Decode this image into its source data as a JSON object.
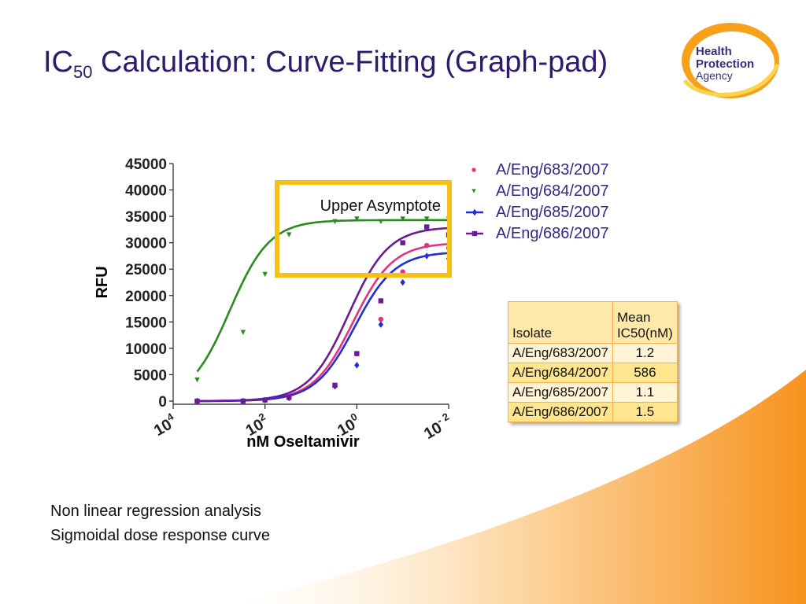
{
  "title": {
    "main": "IC",
    "sub": "50",
    "rest": " Calculation: Curve-Fitting (Graph-pad)"
  },
  "logo": {
    "line1": "Health",
    "line2": "Protection",
    "line3": "Agency"
  },
  "colors": {
    "title": "#2e1a6e",
    "orange_accent": "#f7931e",
    "callout_border": "#f6c117"
  },
  "callout": {
    "label": "Upper Asymptote"
  },
  "chart_data": {
    "type": "scatter",
    "title": "",
    "xlabel": "nM Oseltamivir",
    "ylabel": "RFU",
    "x_scale": "log",
    "x_reversed": true,
    "xlim": [
      10000,
      0.01
    ],
    "ylim": [
      0,
      45000
    ],
    "yticks": [
      0,
      5000,
      10000,
      15000,
      20000,
      25000,
      30000,
      35000,
      40000,
      45000
    ],
    "xticks": [
      {
        "value": 10000,
        "base": "10",
        "exp": "4"
      },
      {
        "value": 100,
        "base": "10",
        "exp": "2"
      },
      {
        "value": 1,
        "base": "10",
        "exp": "0"
      },
      {
        "value": 0.01,
        "base": "10",
        "exp": "- 2"
      }
    ],
    "grid": false,
    "legend_position": "top-right",
    "series": [
      {
        "name": "A/Eng/683/2007",
        "color": "#e8307c",
        "marker": "circle",
        "x": [
          3000,
          300,
          100,
          30,
          3,
          1,
          0.3,
          0.1,
          0.03,
          0.01
        ],
        "y": [
          0,
          0,
          200,
          600,
          3000,
          9000,
          15500,
          24500,
          29500,
          29000
        ],
        "fit": {
          "bottom": 0,
          "top": 30000,
          "ic50": 1.2,
          "hill": 1.0
        }
      },
      {
        "name": "A/Eng/684/2007",
        "color": "#2a8c1e",
        "marker": "triangle-down",
        "x": [
          3000,
          300,
          100,
          30,
          3,
          1,
          0.3,
          0.1,
          0.03,
          0.01
        ],
        "y": [
          4000,
          13000,
          24000,
          31500,
          34000,
          34500,
          34000,
          34500,
          34500,
          34500
        ],
        "fit": {
          "bottom": 0,
          "top": 34300,
          "ic50": 586,
          "hill": 1.0
        }
      },
      {
        "name": "A/Eng/685/2007",
        "color": "#1f2fd8",
        "marker": "diamond",
        "x": [
          3000,
          300,
          100,
          30,
          3,
          1,
          0.3,
          0.1,
          0.03,
          0.01
        ],
        "y": [
          0,
          0,
          200,
          600,
          2800,
          6800,
          14500,
          22500,
          27500,
          27000
        ],
        "fit": {
          "bottom": 0,
          "top": 28300,
          "ic50": 1.1,
          "hill": 1.0
        }
      },
      {
        "name": "A/Eng/686/2007",
        "color": "#6a1b9a",
        "marker": "square",
        "x": [
          3000,
          300,
          100,
          30,
          3,
          1,
          0.3,
          0.1,
          0.03,
          0.01
        ],
        "y": [
          0,
          0,
          200,
          700,
          3000,
          9000,
          19000,
          30000,
          33000,
          31500
        ],
        "fit": {
          "bottom": 0,
          "top": 33000,
          "ic50": 1.5,
          "hill": 1.0
        }
      }
    ]
  },
  "table": {
    "headers": [
      "Isolate",
      "Mean IC50(nM)"
    ],
    "header_lines": [
      "Mean",
      "IC50(nM)"
    ],
    "rows": [
      {
        "isolate": "A/Eng/683/2007",
        "ic50": "1.2"
      },
      {
        "isolate": "A/Eng/684/2007",
        "ic50": "586"
      },
      {
        "isolate": "A/Eng/685/2007",
        "ic50": "1.1"
      },
      {
        "isolate": "A/Eng/686/2007",
        "ic50": "1.5"
      }
    ]
  },
  "notes": [
    "Non linear regression analysis",
    "Sigmoidal dose response curve"
  ]
}
